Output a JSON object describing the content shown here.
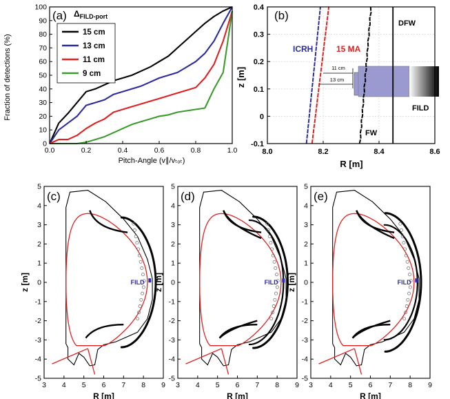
{
  "chart_data": [
    {
      "id": "a",
      "type": "line",
      "panel_label": "(a)",
      "ylabel": "Fraction of detections (%)",
      "xlabel": "Pitch-Angle (v∥/vₜₒₜ)",
      "legend_title": "ΔFILD-port",
      "legend_title_main": "Δ",
      "legend_title_sub": "FILD-port",
      "legend_placement": "top-left",
      "xlim": [
        0,
        1
      ],
      "ylim": [
        0,
        100
      ],
      "x_ticks": [
        "0.0",
        "0.2",
        "0.4",
        "0.6",
        "0.8",
        "1.0"
      ],
      "y_ticks": [
        "0",
        "10",
        "20",
        "30",
        "40",
        "50",
        "60",
        "70",
        "80",
        "90",
        "100"
      ],
      "series": [
        {
          "name": "15 cm",
          "color": "#000000",
          "x": [
            0,
            0.05,
            0.1,
            0.15,
            0.2,
            0.25,
            0.3,
            0.35,
            0.4,
            0.45,
            0.5,
            0.55,
            0.6,
            0.65,
            0.7,
            0.75,
            0.8,
            0.85,
            0.9,
            0.95,
            1.0
          ],
          "y": [
            0,
            15,
            22,
            30,
            38,
            40,
            43,
            46,
            48,
            50,
            53,
            56,
            60,
            64,
            70,
            76,
            82,
            88,
            93,
            97,
            100
          ]
        },
        {
          "name": "13 cm",
          "color": "#2b2b9b",
          "x": [
            0,
            0.05,
            0.1,
            0.15,
            0.2,
            0.25,
            0.3,
            0.35,
            0.4,
            0.45,
            0.5,
            0.55,
            0.6,
            0.65,
            0.7,
            0.75,
            0.8,
            0.85,
            0.9,
            0.95,
            1.0
          ],
          "y": [
            0,
            10,
            15,
            20,
            28,
            30,
            32,
            36,
            38,
            40,
            42,
            45,
            48,
            50,
            52,
            56,
            60,
            66,
            75,
            88,
            100
          ]
        },
        {
          "name": "11 cm",
          "color": "#e02020",
          "x": [
            0,
            0.05,
            0.1,
            0.15,
            0.2,
            0.25,
            0.3,
            0.35,
            0.4,
            0.45,
            0.5,
            0.55,
            0.6,
            0.65,
            0.7,
            0.75,
            0.8,
            0.85,
            0.9,
            0.95,
            1.0
          ],
          "y": [
            0,
            3,
            3,
            6,
            11,
            15,
            18,
            23,
            25,
            27,
            29,
            31,
            33,
            35,
            37,
            39,
            41,
            48,
            58,
            75,
            97
          ]
        },
        {
          "name": "9 cm",
          "color": "#3a9a2a",
          "x": [
            0,
            0.15,
            0.2,
            0.25,
            0.3,
            0.35,
            0.4,
            0.45,
            0.5,
            0.55,
            0.6,
            0.65,
            0.7,
            0.75,
            0.8,
            0.85,
            0.9,
            0.95,
            1.0
          ],
          "y": [
            0,
            0,
            1,
            3,
            5,
            8,
            11,
            14,
            16,
            18,
            20,
            21,
            23,
            24,
            25,
            26,
            40,
            52,
            97
          ]
        }
      ]
    },
    {
      "id": "b",
      "type": "line",
      "panel_label": "(b)",
      "xlabel": "R [m]",
      "ylabel": "z [m]",
      "xlim": [
        8.0,
        8.6
      ],
      "ylim": [
        -0.1,
        0.4
      ],
      "x_ticks": [
        "8.0",
        "8.2",
        "8.4",
        "8.6"
      ],
      "y_ticks": [
        "-0.1",
        "0",
        "0.1",
        "0.2",
        "0.3",
        "0.4"
      ],
      "annotations": [
        "ICRH",
        "15 MA",
        "DFW",
        "FW",
        "FILD",
        "11 cm",
        "13 cm"
      ],
      "series": [
        {
          "color": "#2b2b9b",
          "x": [
            8.14,
            8.19
          ],
          "y": [
            -0.1,
            0.4
          ]
        },
        {
          "color": "#e02020",
          "x": [
            8.16,
            8.22
          ],
          "y": [
            -0.1,
            0.4
          ]
        },
        {
          "color": "#000000",
          "x": [
            8.33,
            8.37
          ],
          "y": [
            -0.1,
            0.4
          ]
        },
        {
          "color": "#000000",
          "x": [
            8.45,
            8.45
          ],
          "y": [
            -0.1,
            0.4
          ]
        }
      ]
    },
    {
      "id": "c",
      "type": "line",
      "panel_label": "(c)",
      "xlabel": "R [m]",
      "ylabel": "z [m]",
      "xlim": [
        3,
        9
      ],
      "ylim": [
        -5,
        5
      ],
      "x_ticks": [
        "3",
        "4",
        "5",
        "6",
        "7",
        "8",
        "9"
      ],
      "y_ticks": [
        "-5",
        "-4",
        "-3",
        "-2",
        "-1",
        "0",
        "1",
        "2",
        "3",
        "4",
        "5"
      ],
      "annotation": "FILD"
    },
    {
      "id": "d",
      "type": "line",
      "panel_label": "(d)",
      "xlabel": "R [m]",
      "ylabel": "z [m]",
      "xlim": [
        3,
        9
      ],
      "ylim": [
        -5,
        5
      ],
      "x_ticks": [
        "3",
        "4",
        "5",
        "6",
        "7",
        "8",
        "9"
      ],
      "y_ticks": [
        "-5",
        "-4",
        "-3",
        "-2",
        "-1",
        "0",
        "1",
        "2",
        "3",
        "4",
        "5"
      ],
      "annotation": "FILD"
    },
    {
      "id": "e",
      "type": "line",
      "panel_label": "(e)",
      "xlabel": "R [m]",
      "ylabel": "z [m]",
      "xlim": [
        3,
        9
      ],
      "ylim": [
        -5,
        5
      ],
      "x_ticks": [
        "3",
        "4",
        "5",
        "6",
        "7",
        "8",
        "9"
      ],
      "y_ticks": [
        "-5",
        "-4",
        "-3",
        "-2",
        "-1",
        "0",
        "1",
        "2",
        "3",
        "4",
        "5"
      ],
      "annotation": "FILD"
    }
  ],
  "colors": {
    "black": "#000000",
    "blue": "#2b2b9b",
    "red": "#e02020",
    "green": "#3a9a2a",
    "fild_body": "#9a9ad0",
    "fild_marker": "#2b2bbb"
  }
}
